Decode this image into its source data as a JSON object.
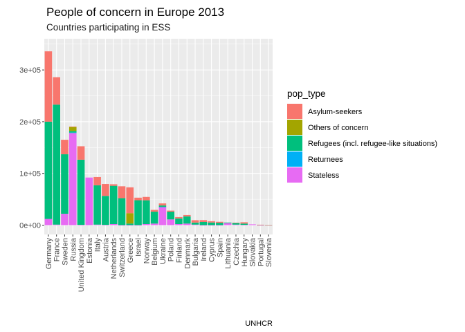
{
  "chart_data": {
    "type": "bar",
    "stacked": true,
    "title": "People of concern in Europe 2013",
    "subtitle": "Countries participating in ESS",
    "caption": "UNHCR",
    "xlabel": "",
    "ylabel": "",
    "ylim": [
      0,
      355000
    ],
    "yticks": [
      0,
      100000,
      200000,
      300000
    ],
    "ytick_labels": [
      "0e+00",
      "1e+05",
      "2e+05",
      "3e+05"
    ],
    "grid": true,
    "legend_title": "pop_type",
    "legend_position": "right",
    "categories": [
      "Germany",
      "France",
      "Sweden",
      "Russia",
      "United Kingdom",
      "Estonia",
      "Italy",
      "Austria",
      "Netherlands",
      "Switzerland",
      "Greece",
      "Israel",
      "Norway",
      "Belgium",
      "Ukraine",
      "Poland",
      "Finland",
      "Denmark",
      "Bulgaria",
      "Ireland",
      "Cyprus",
      "Spain",
      "Lithuania",
      "Czechia",
      "Hungary",
      "Slovakia",
      "Portugal",
      "Slovenia"
    ],
    "series": [
      {
        "name": "Stateless",
        "color": "#E76BF3",
        "values": [
          12000,
          1000,
          22000,
          178000,
          500,
          92000,
          1000,
          500,
          2000,
          100,
          100,
          100,
          2000,
          3000,
          35000,
          11000,
          2000,
          3000,
          1000,
          100,
          100,
          100,
          4000,
          1000,
          500,
          1500,
          100,
          100
        ]
      },
      {
        "name": "Returnees",
        "color": "#00B0F6",
        "values": [
          0,
          0,
          0,
          1000,
          0,
          0,
          0,
          0,
          0,
          0,
          0,
          0,
          0,
          0,
          500,
          0,
          0,
          0,
          0,
          0,
          0,
          0,
          0,
          0,
          0,
          0,
          0,
          0
        ]
      },
      {
        "name": "Refugees (incl. refugee-like situations)",
        "color": "#00BF7D",
        "values": [
          188000,
          232000,
          115000,
          3000,
          126000,
          0,
          76000,
          56000,
          74000,
          52000,
          3000,
          48000,
          46000,
          23000,
          2500,
          15000,
          11000,
          14000,
          4000,
          6000,
          5000,
          4500,
          1000,
          3000,
          2500,
          0,
          500,
          100
        ]
      },
      {
        "name": "Others of concern",
        "color": "#A3A500",
        "values": [
          0,
          0,
          0,
          8000,
          0,
          0,
          0,
          0,
          0,
          0,
          20000,
          0,
          0,
          0,
          0,
          0,
          0,
          0,
          0,
          0,
          0,
          0,
          0,
          0,
          0,
          0,
          0,
          0
        ]
      },
      {
        "name": "Asylum-seekers",
        "color": "#F8766D",
        "values": [
          136000,
          53000,
          28000,
          500,
          26000,
          0,
          16000,
          23000,
          3000,
          23000,
          50000,
          5000,
          6500,
          3500,
          4000,
          2000,
          2500,
          2500,
          4500,
          3500,
          2500,
          1800,
          0,
          800,
          2500,
          0,
          200,
          100
        ]
      }
    ]
  },
  "legend_order": [
    "Asylum-seekers",
    "Others of concern",
    "Refugees (incl. refugee-like situations)",
    "Returnees",
    "Stateless"
  ]
}
